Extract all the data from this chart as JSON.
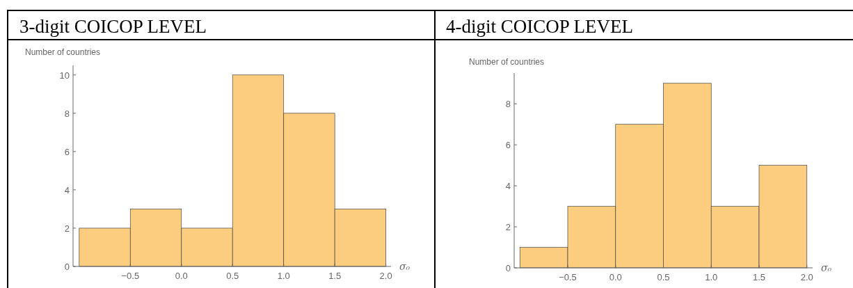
{
  "chart_data": [
    {
      "type": "histogram",
      "title": "3-digit COICOP LEVEL",
      "ylabel": "Number of countries",
      "xlabel": "σ₀",
      "bins": [
        -1,
        -0.5,
        0,
        0.5,
        1,
        1.5,
        2
      ],
      "values": [
        2,
        3,
        2,
        10,
        8,
        3
      ],
      "color": "#fccd7e",
      "xlim": [
        -1.06,
        2.05
      ],
      "ylim": [
        0,
        10.5
      ],
      "xticks": [
        {
          "value": -0.5,
          "label": "−0.5"
        },
        {
          "value": 0,
          "label": "0.0"
        },
        {
          "value": 0.5,
          "label": "0.5"
        },
        {
          "value": 1,
          "label": "1.0"
        },
        {
          "value": 1.5,
          "label": "1.5"
        },
        {
          "value": 2,
          "label": "2.0"
        }
      ],
      "yticks": [
        0,
        2,
        4,
        6,
        8,
        10
      ]
    },
    {
      "type": "histogram",
      "title": "4-digit COICOP LEVEL",
      "ylabel": "Number of countries",
      "xlabel": "σ₀",
      "bins": [
        -1,
        -0.5,
        0,
        0.5,
        1,
        1.5,
        2
      ],
      "values": [
        1,
        3,
        7,
        9,
        3,
        5
      ],
      "color": "#fccd7e",
      "xlim": [
        -1.06,
        2.06
      ],
      "ylim": [
        0,
        9.5
      ],
      "xticks": [
        {
          "value": -0.5,
          "label": "−0.5"
        },
        {
          "value": 0,
          "label": "0.0"
        },
        {
          "value": 0.5,
          "label": "0.5"
        },
        {
          "value": 1,
          "label": "1.0"
        },
        {
          "value": 1.5,
          "label": "1.5"
        },
        {
          "value": 2,
          "label": "2.0"
        }
      ],
      "yticks": [
        0,
        2,
        4,
        6,
        8
      ]
    }
  ]
}
